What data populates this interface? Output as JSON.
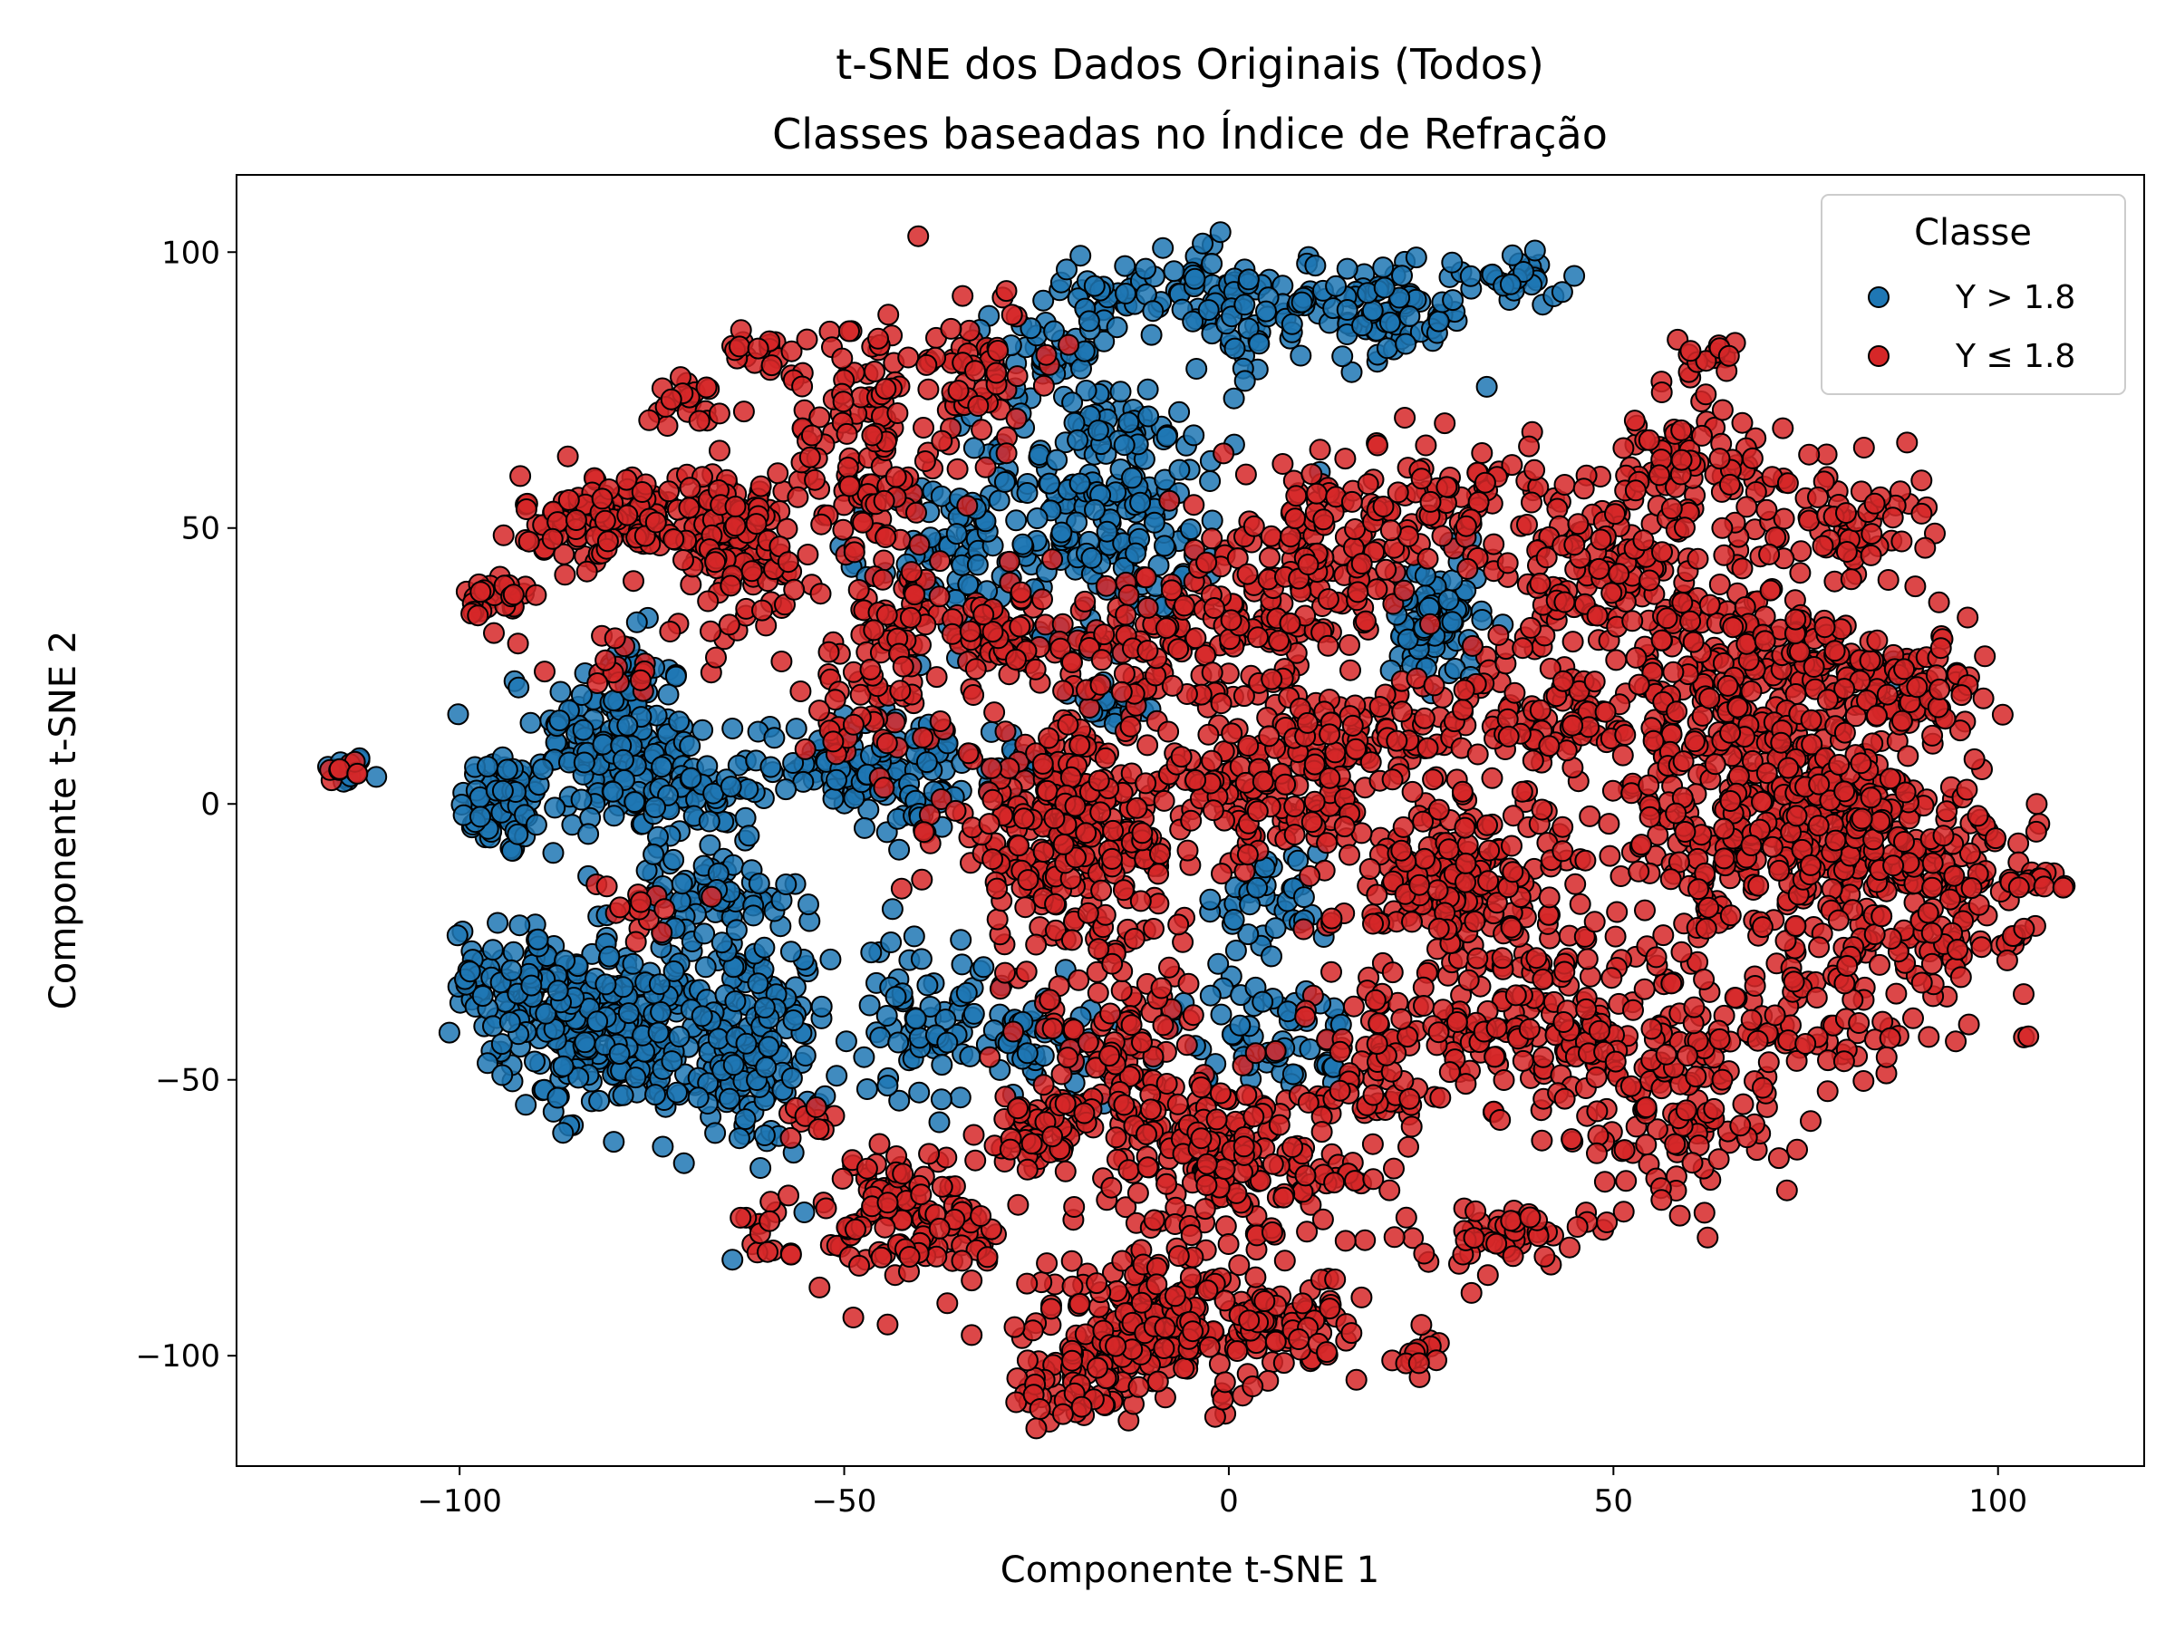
{
  "chart_data": {
    "type": "scatter",
    "title_line1": "t-SNE dos Dados Originais (Todos)",
    "title_line2": "Classes baseadas no Índice de Refração",
    "xlabel": "Componente t-SNE 1",
    "ylabel": "Componente t-SNE 2",
    "xlim": [
      -129,
      119
    ],
    "ylim": [
      -120,
      114
    ],
    "xticks": [
      -100,
      -50,
      0,
      50,
      100
    ],
    "yticks": [
      -100,
      -50,
      0,
      50,
      100
    ],
    "xtick_labels": [
      "−100",
      "−50",
      "0",
      "50",
      "100"
    ],
    "ytick_labels": [
      "−100",
      "−50",
      "0",
      "50",
      "100"
    ],
    "grid": false,
    "legend": {
      "title": "Classe",
      "placement": "upper right",
      "entries": [
        "Y > 1.8",
        "Y ≤ 1.8"
      ]
    },
    "marker_edge_color": "#000000",
    "series": [
      {
        "name": "Y > 1.8",
        "color": "#1f77b4",
        "clusters": [
          {
            "x": -115,
            "y": 6,
            "sx": 1.5,
            "sy": 1.5,
            "n": 10
          },
          {
            "x": -94,
            "y": 0,
            "sx": 3,
            "sy": 5,
            "n": 70
          },
          {
            "x": -80,
            "y": 12,
            "sx": 5,
            "sy": 9,
            "n": 160
          },
          {
            "x": -70,
            "y": 2,
            "sx": 4,
            "sy": 5,
            "n": 60
          },
          {
            "x": -80,
            "y": -42,
            "sx": 7,
            "sy": 7,
            "n": 220
          },
          {
            "x": -93,
            "y": -32,
            "sx": 4,
            "sy": 5,
            "n": 80
          },
          {
            "x": -62,
            "y": -44,
            "sx": 5,
            "sy": 10,
            "n": 150
          },
          {
            "x": -68,
            "y": -18,
            "sx": 6,
            "sy": 5,
            "n": 80
          },
          {
            "x": -50,
            "y": 8,
            "sx": 6,
            "sy": 5,
            "n": 80
          },
          {
            "x": -40,
            "y": 5,
            "sx": 4,
            "sy": 6,
            "n": 50
          },
          {
            "x": -38,
            "y": 45,
            "sx": 4,
            "sy": 7,
            "n": 50
          },
          {
            "x": -17,
            "y": 55,
            "sx": 9,
            "sy": 12,
            "n": 240
          },
          {
            "x": -23,
            "y": 82,
            "sx": 4,
            "sy": 4,
            "n": 30
          },
          {
            "x": -14,
            "y": 93,
            "sx": 5,
            "sy": 3,
            "n": 40
          },
          {
            "x": -2,
            "y": 94,
            "sx": 4,
            "sy": 4,
            "n": 40
          },
          {
            "x": 2,
            "y": 85,
            "sx": 3,
            "sy": 4,
            "n": 25
          },
          {
            "x": 19,
            "y": 90,
            "sx": 7,
            "sy": 5,
            "n": 100
          },
          {
            "x": 38,
            "y": 95,
            "sx": 3,
            "sy": 2,
            "n": 25
          },
          {
            "x": 27,
            "y": 33,
            "sx": 3,
            "sy": 6,
            "n": 80
          },
          {
            "x": 5,
            "y": -18,
            "sx": 4,
            "sy": 5,
            "n": 40
          },
          {
            "x": -40,
            "y": -38,
            "sx": 4,
            "sy": 8,
            "n": 60
          },
          {
            "x": -25,
            "y": -42,
            "sx": 6,
            "sy": 5,
            "n": 60
          },
          {
            "x": 5,
            "y": -42,
            "sx": 6,
            "sy": 5,
            "n": 60
          },
          {
            "x": -28,
            "y": 8,
            "sx": 3,
            "sy": 3,
            "n": 20
          },
          {
            "x": -15,
            "y": 18,
            "sx": 3,
            "sy": 3,
            "n": 20
          },
          {
            "x": 85,
            "y": 25,
            "sx": 3,
            "sy": 2,
            "n": 8
          }
        ]
      },
      {
        "name": "Y ≤ 1.8",
        "color": "#d62728",
        "clusters": [
          {
            "x": -115,
            "y": 5,
            "sx": 1.5,
            "sy": 2,
            "n": 8
          },
          {
            "x": -95,
            "y": 37,
            "sx": 2,
            "sy": 3,
            "n": 30
          },
          {
            "x": -78,
            "y": 52,
            "sx": 7,
            "sy": 4,
            "n": 140
          },
          {
            "x": -64,
            "y": 45,
            "sx": 5,
            "sy": 8,
            "n": 100
          },
          {
            "x": -70,
            "y": 73,
            "sx": 2,
            "sy": 2,
            "n": 20
          },
          {
            "x": -60,
            "y": 82,
            "sx": 3,
            "sy": 2,
            "n": 20
          },
          {
            "x": -47,
            "y": 65,
            "sx": 5,
            "sy": 13,
            "n": 130
          },
          {
            "x": -43,
            "y": 33,
            "sx": 4,
            "sy": 5,
            "n": 50
          },
          {
            "x": -30,
            "y": 30,
            "sx": 5,
            "sy": 5,
            "n": 60
          },
          {
            "x": -12,
            "y": 30,
            "sx": 7,
            "sy": 6,
            "n": 80
          },
          {
            "x": -32,
            "y": 78,
            "sx": 5,
            "sy": 7,
            "n": 60
          },
          {
            "x": -48,
            "y": 17,
            "sx": 5,
            "sy": 5,
            "n": 50
          },
          {
            "x": -20,
            "y": -5,
            "sx": 9,
            "sy": 10,
            "n": 300
          },
          {
            "x": 5,
            "y": 0,
            "sx": 7,
            "sy": 5,
            "n": 80
          },
          {
            "x": 0,
            "y": 30,
            "sx": 6,
            "sy": 10,
            "n": 80
          },
          {
            "x": 13,
            "y": 45,
            "sx": 7,
            "sy": 8,
            "n": 120
          },
          {
            "x": 30,
            "y": 55,
            "sx": 8,
            "sy": 5,
            "n": 80
          },
          {
            "x": 15,
            "y": 10,
            "sx": 7,
            "sy": 7,
            "n": 120
          },
          {
            "x": 30,
            "y": -15,
            "sx": 8,
            "sy": 8,
            "n": 200
          },
          {
            "x": 42,
            "y": 15,
            "sx": 8,
            "sy": 7,
            "n": 120
          },
          {
            "x": 50,
            "y": 40,
            "sx": 9,
            "sy": 6,
            "n": 130
          },
          {
            "x": 60,
            "y": 60,
            "sx": 6,
            "sy": 6,
            "n": 90
          },
          {
            "x": 62,
            "y": 80,
            "sx": 2,
            "sy": 2,
            "n": 15
          },
          {
            "x": 65,
            "y": 20,
            "sx": 7,
            "sy": 9,
            "n": 150
          },
          {
            "x": 70,
            "y": -5,
            "sx": 10,
            "sy": 12,
            "n": 300
          },
          {
            "x": 90,
            "y": -15,
            "sx": 7,
            "sy": 10,
            "n": 200
          },
          {
            "x": 88,
            "y": 20,
            "sx": 6,
            "sy": 5,
            "n": 100
          },
          {
            "x": 78,
            "y": 50,
            "sx": 6,
            "sy": 6,
            "n": 70
          },
          {
            "x": 75,
            "y": 30,
            "sx": 5,
            "sy": 3,
            "n": 40
          },
          {
            "x": 105,
            "y": -14,
            "sx": 2,
            "sy": 1.5,
            "n": 15
          },
          {
            "x": 42,
            "y": -40,
            "sx": 10,
            "sy": 8,
            "n": 150
          },
          {
            "x": 58,
            "y": -55,
            "sx": 8,
            "sy": 10,
            "n": 130
          },
          {
            "x": 75,
            "y": -40,
            "sx": 6,
            "sy": 6,
            "n": 60
          },
          {
            "x": 35,
            "y": -78,
            "sx": 5,
            "sy": 3,
            "n": 50
          },
          {
            "x": 20,
            "y": -45,
            "sx": 5,
            "sy": 6,
            "n": 60
          },
          {
            "x": -15,
            "y": -45,
            "sx": 7,
            "sy": 10,
            "n": 130
          },
          {
            "x": 0,
            "y": -65,
            "sx": 10,
            "sy": 8,
            "n": 200
          },
          {
            "x": -10,
            "y": -95,
            "sx": 8,
            "sy": 7,
            "n": 180
          },
          {
            "x": 5,
            "y": -95,
            "sx": 6,
            "sy": 5,
            "n": 80
          },
          {
            "x": -22,
            "y": -105,
            "sx": 4,
            "sy": 4,
            "n": 50
          },
          {
            "x": -40,
            "y": -75,
            "sx": 6,
            "sy": 7,
            "n": 120
          },
          {
            "x": -25,
            "y": -60,
            "sx": 4,
            "sy": 4,
            "n": 40
          },
          {
            "x": 25,
            "y": -100,
            "sx": 2,
            "sy": 2,
            "n": 15
          },
          {
            "x": -60,
            "y": -78,
            "sx": 2,
            "sy": 4,
            "n": 15
          },
          {
            "x": -55,
            "y": -57,
            "sx": 2,
            "sy": 2,
            "n": 10
          },
          {
            "x": -80,
            "y": 25,
            "sx": 3,
            "sy": 3,
            "n": 15
          },
          {
            "x": -75,
            "y": -20,
            "sx": 3,
            "sy": 3,
            "n": 15
          },
          {
            "x": 80,
            "y": 0,
            "sx": 5,
            "sy": 5,
            "n": 60
          }
        ]
      }
    ]
  }
}
